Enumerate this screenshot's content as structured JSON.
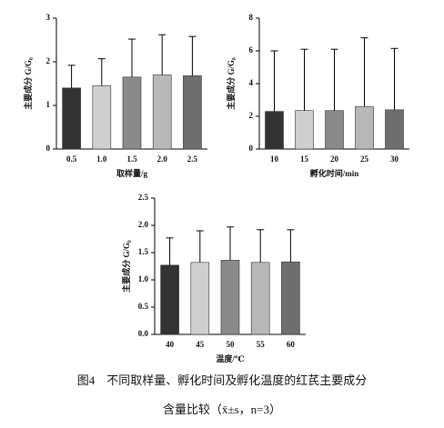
{
  "chart_data": [
    {
      "type": "bar",
      "xlabel": "取样量/g",
      "ylabel": "主要成分 G/G₀",
      "categories": [
        "0.5",
        "1.0",
        "1.5",
        "2.0",
        "2.5"
      ],
      "values": [
        1.4,
        1.45,
        1.65,
        1.7,
        1.68
      ],
      "errors": [
        0.52,
        0.62,
        0.87,
        0.92,
        0.9
      ],
      "colors": [
        "#333333",
        "#cfcfcf",
        "#8a8a8a",
        "#b8b8b8",
        "#6e6e6e"
      ],
      "ylim": [
        0,
        3
      ],
      "yticks": [
        0,
        1,
        2,
        3
      ]
    },
    {
      "type": "bar",
      "xlabel": "孵化时间/min",
      "ylabel": "主要成分 G/G₀",
      "categories": [
        10,
        15,
        20,
        25,
        30
      ],
      "values": [
        2.3,
        2.35,
        2.35,
        2.6,
        2.4
      ],
      "errors": [
        3.7,
        3.75,
        3.75,
        4.2,
        3.75
      ],
      "colors": [
        "#333333",
        "#cfcfcf",
        "#8a8a8a",
        "#b8b8b8",
        "#6e6e6e"
      ],
      "ylim": [
        0,
        8
      ],
      "yticks": [
        0,
        2,
        4,
        6,
        8
      ]
    },
    {
      "type": "bar",
      "xlabel": "温度/℃",
      "ylabel": "主要成分 G/G₀",
      "categories": [
        40,
        45,
        50,
        55,
        60
      ],
      "values": [
        1.27,
        1.32,
        1.36,
        1.32,
        1.33
      ],
      "errors": [
        0.5,
        0.58,
        0.61,
        0.6,
        0.59
      ],
      "colors": [
        "#333333",
        "#cfcfcf",
        "#8a8a8a",
        "#b8b8b8",
        "#6e6e6e"
      ],
      "ylim": [
        0,
        2.5
      ],
      "yticks": [
        {
          "value": 0,
          "label": "0.0"
        },
        0.5,
        {
          "value": 1,
          "label": "1.0"
        },
        1.5,
        {
          "value": 2,
          "label": "2.0"
        },
        2.5
      ]
    }
  ],
  "caption": [
    "图4　不同取样量、孵化时间及孵化温度的红芪主要成分",
    "含量比较（x̄±s，n=3）"
  ]
}
